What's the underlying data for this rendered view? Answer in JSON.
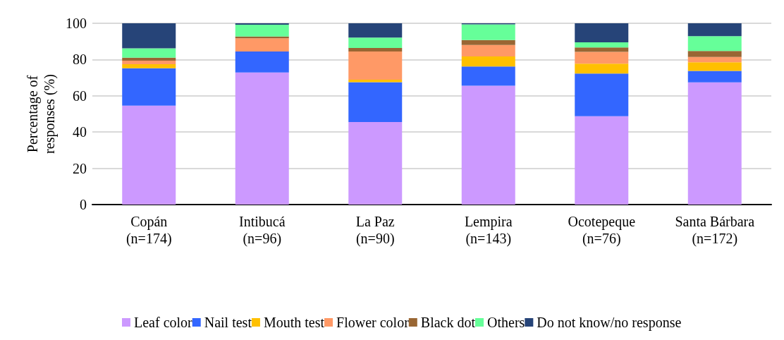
{
  "chart_data": {
    "type": "bar",
    "stacked": true,
    "ylabel": "Percentage of\nresponses (%)",
    "categories": [
      "Copán\n(n=174)",
      "Intibucá\n(n=96)",
      "La Paz\n(n=90)",
      "Lempira\n(n=143)",
      "Ocotepeque\n(n=76)",
      "Santa Bárbara\n(n=172)"
    ],
    "series": [
      {
        "name": "Leaf color",
        "color": "#cc99ff",
        "values": [
          54.6,
          72.9,
          45.5,
          65.6,
          48.7,
          67.4
        ]
      },
      {
        "name": "Nail test",
        "color": "#3366ff",
        "values": [
          20.6,
          11.5,
          22.0,
          10.6,
          23.6,
          6.3
        ]
      },
      {
        "name": "Mouth test",
        "color": "#ffc000",
        "values": [
          2.2,
          0,
          1.4,
          5.5,
          5.4,
          4.8
        ]
      },
      {
        "name": "Flower color",
        "color": "#ff9966",
        "values": [
          2.0,
          7.3,
          15.5,
          6.3,
          6.5,
          2.9
        ]
      },
      {
        "name": "Black dot",
        "color": "#996633",
        "values": [
          1.6,
          1.0,
          2.0,
          2.8,
          2.5,
          3.3
        ]
      },
      {
        "name": "Others",
        "color": "#66ff99",
        "values": [
          5.2,
          6.5,
          5.7,
          8.6,
          2.8,
          8.2
        ]
      },
      {
        "name": "Do not know/no response",
        "color": "#264478",
        "values": [
          13.8,
          0.8,
          7.9,
          0.6,
          10.5,
          7.1
        ]
      }
    ],
    "ylim": [
      0,
      100
    ],
    "yticks": [
      0,
      20,
      40,
      60,
      80,
      100
    ],
    "grid": "y",
    "legend": "bottom"
  }
}
